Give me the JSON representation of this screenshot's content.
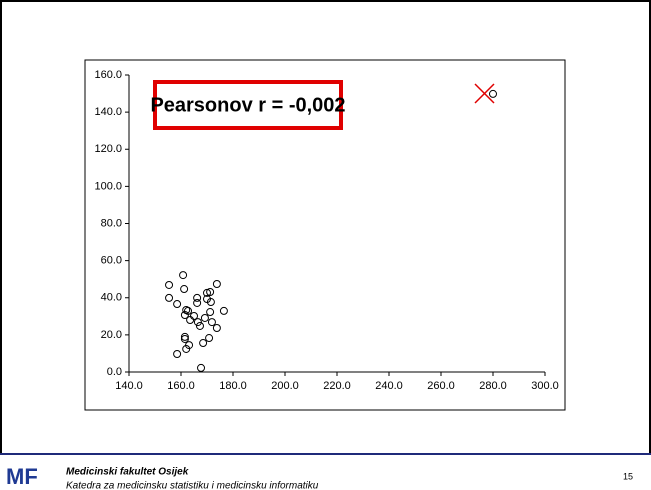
{
  "chart_data": {
    "type": "scatter",
    "annotation": "Pearsonov r = -0,002",
    "x": [
      155.4,
      155.4,
      160.8,
      158.5,
      161.2,
      162,
      162.7,
      161.5,
      163.5,
      165,
      166.2,
      166.2,
      166.5,
      167.3,
      169.2,
      170,
      170,
      171.2,
      171.5,
      171.2,
      173.8,
      176.5,
      171.9,
      173.8,
      170.8,
      161.5,
      161.5,
      163.1,
      162,
      158.5,
      168.5,
      167.7,
      280
    ],
    "values": [
      46.9,
      39.9,
      52.2,
      36.6,
      44.7,
      33.4,
      32.9,
      30.7,
      28,
      30.2,
      39.9,
      37.2,
      26.9,
      24.8,
      29.1,
      39.3,
      42.6,
      43.1,
      37.7,
      32.3,
      47.4,
      32.9,
      26.9,
      23.7,
      18.3,
      18.9,
      17.8,
      14.5,
      12.4,
      9.7,
      15.6,
      2.2,
      149.8
    ],
    "color": "#000000",
    "xlim": [
      140,
      300
    ],
    "xticks": [
      {
        "value": 140,
        "label": "140.0"
      },
      {
        "value": 160,
        "label": "160.0"
      },
      {
        "value": 180,
        "label": "180.0"
      },
      {
        "value": 200,
        "label": "200.0"
      },
      {
        "value": 220,
        "label": "220.0"
      },
      {
        "value": 240,
        "label": "240.0"
      },
      {
        "value": 260,
        "label": "260.0"
      },
      {
        "value": 280,
        "label": "280.0"
      },
      {
        "value": 300,
        "label": "300.0"
      }
    ],
    "ylim": [
      0,
      160
    ],
    "yticks": [
      {
        "value": 0,
        "label": "0.0"
      },
      {
        "value": 20,
        "label": "20.0"
      },
      {
        "value": 40,
        "label": "40.0"
      },
      {
        "value": 60,
        "label": "60.0"
      },
      {
        "value": 80,
        "label": "80.0"
      },
      {
        "value": 100,
        "label": "100.0"
      },
      {
        "value": 120,
        "label": "120.0"
      },
      {
        "value": 140,
        "label": "140.0"
      },
      {
        "value": 160,
        "label": "160.0"
      }
    ],
    "grid": false
  },
  "footer": {
    "institution": "Medicinski fakultet Osijek",
    "department": "Katedra za medicinsku statistiku i medicinsku informatiku",
    "page": "15"
  }
}
